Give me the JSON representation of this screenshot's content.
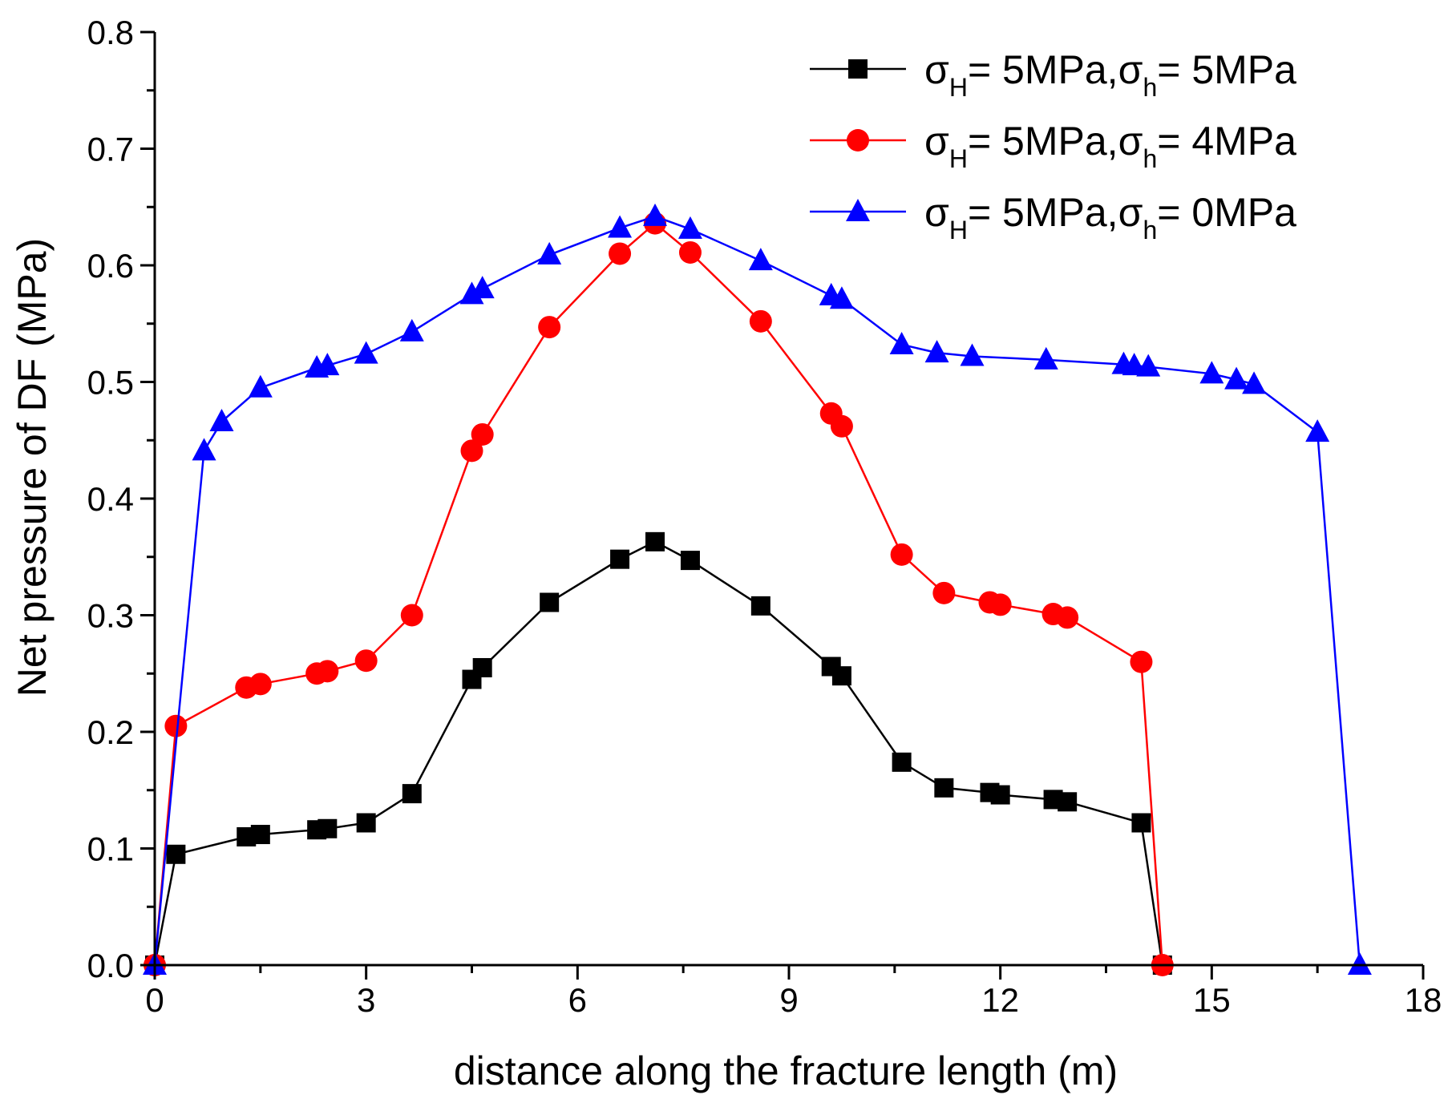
{
  "chart_data": {
    "type": "line",
    "title": "",
    "xlabel": "distance along the fracture length (m)",
    "ylabel": "Net pressure of DF (MPa)",
    "xlim": [
      0,
      18
    ],
    "ylim": [
      0,
      0.8
    ],
    "xticks": [
      0,
      3,
      6,
      9,
      12,
      15,
      18
    ],
    "yticks": [
      0.0,
      0.1,
      0.2,
      0.3,
      0.4,
      0.5,
      0.6,
      0.7,
      0.8
    ],
    "xtick_labels": [
      "0",
      "3",
      "6",
      "9",
      "12",
      "15",
      "18"
    ],
    "ytick_labels": [
      "0.0",
      "0.1",
      "0.2",
      "0.3",
      "0.4",
      "0.5",
      "0.6",
      "0.7",
      "0.8"
    ],
    "legend_position": "top-right",
    "series": [
      {
        "name": "σH= 5MPa,σh= 5MPa",
        "legend": {
          "sym1": "σ",
          "sub1": "H",
          "mid": "= 5MPa,",
          "sym2": "σ",
          "sub2": "h",
          "end": "= 5MPa"
        },
        "color": "#000000",
        "marker": "square",
        "x": [
          0,
          0.3,
          1.3,
          1.5,
          2.3,
          2.45,
          3.0,
          3.65,
          4.5,
          4.65,
          5.6,
          6.6,
          7.1,
          7.6,
          8.6,
          9.6,
          9.75,
          10.6,
          11.2,
          11.85,
          12.0,
          12.75,
          12.95,
          14.0,
          14.3
        ],
        "y": [
          0.0,
          0.095,
          0.11,
          0.112,
          0.116,
          0.117,
          0.122,
          0.147,
          0.245,
          0.255,
          0.311,
          0.348,
          0.363,
          0.347,
          0.308,
          0.256,
          0.248,
          0.174,
          0.152,
          0.148,
          0.146,
          0.142,
          0.14,
          0.122,
          0.0
        ]
      },
      {
        "name": "σH= 5MPa,σh= 4MPa",
        "legend": {
          "sym1": "σ",
          "sub1": "H",
          "mid": "= 5MPa,",
          "sym2": "σ",
          "sub2": "h",
          "end": "= 4MPa"
        },
        "color": "#ff0000",
        "marker": "circle",
        "x": [
          0,
          0.3,
          1.3,
          1.5,
          2.3,
          2.45,
          3.0,
          3.65,
          4.5,
          4.65,
          5.6,
          6.6,
          7.1,
          7.6,
          8.6,
          9.6,
          9.75,
          10.6,
          11.2,
          11.85,
          12.0,
          12.75,
          12.95,
          14.0,
          14.3
        ],
        "y": [
          0.0,
          0.205,
          0.238,
          0.241,
          0.25,
          0.252,
          0.261,
          0.3,
          0.441,
          0.455,
          0.547,
          0.61,
          0.636,
          0.611,
          0.552,
          0.473,
          0.462,
          0.352,
          0.319,
          0.311,
          0.309,
          0.301,
          0.298,
          0.26,
          0.0
        ]
      },
      {
        "name": "σH= 5MPa,σh= 0MPa",
        "legend": {
          "sym1": "σ",
          "sub1": "H",
          "mid": "= 5MPa,",
          "sym2": "σ",
          "sub2": "h",
          "end": "= 0MPa"
        },
        "color": "#0000ff",
        "marker": "triangle",
        "x": [
          0,
          0.7,
          0.95,
          1.5,
          2.3,
          2.45,
          3.0,
          3.65,
          4.5,
          4.65,
          5.6,
          6.6,
          7.1,
          7.6,
          8.6,
          9.6,
          9.75,
          10.6,
          11.1,
          11.6,
          12.65,
          13.75,
          13.9,
          14.1,
          15.0,
          15.35,
          15.6,
          16.5,
          17.1
        ],
        "y": [
          0.0,
          0.441,
          0.466,
          0.495,
          0.512,
          0.514,
          0.524,
          0.543,
          0.575,
          0.58,
          0.609,
          0.632,
          0.642,
          0.631,
          0.604,
          0.574,
          0.571,
          0.532,
          0.525,
          0.522,
          0.519,
          0.515,
          0.514,
          0.513,
          0.507,
          0.502,
          0.498,
          0.457,
          0.0
        ]
      }
    ]
  }
}
